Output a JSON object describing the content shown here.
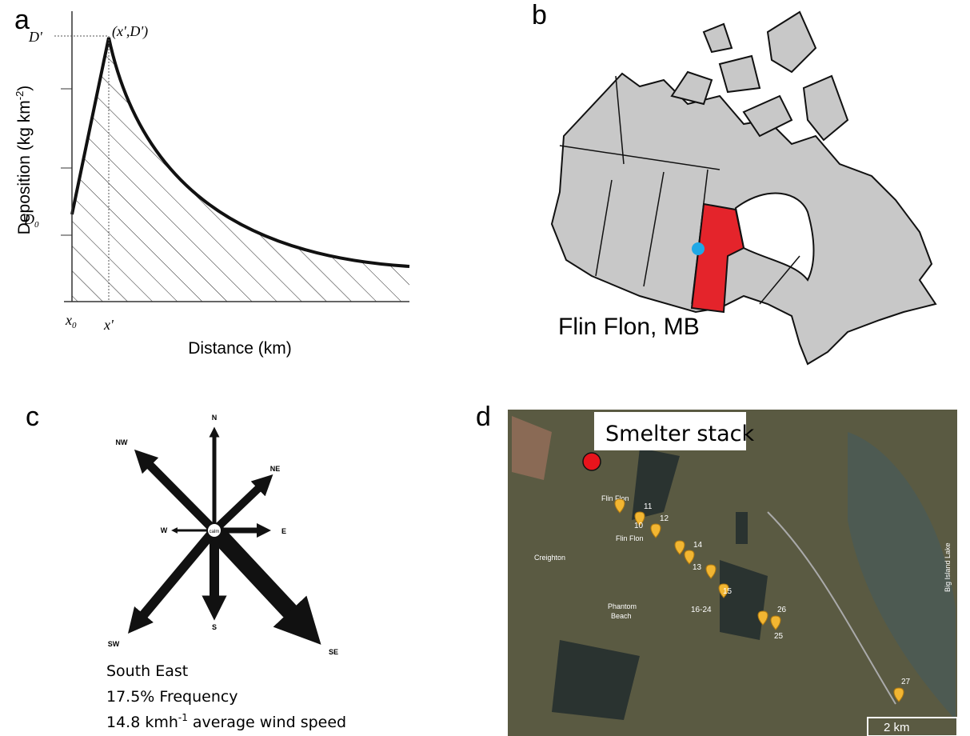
{
  "panel_a": {
    "label": "a",
    "y_label": "Deposition (kg km",
    "y_label_sup": "-2",
    "y_label_end": ")",
    "x_label": "Distance (km)",
    "d_prime": "D'",
    "peak": "(x',D')",
    "d0": "D",
    "d0_sub": "0",
    "x0": "x",
    "x0_sub": "0",
    "x_prime": "x'"
  },
  "panel_b": {
    "label": "b",
    "place": "Flin Flon, MB"
  },
  "panel_c": {
    "label": "c",
    "directions": {
      "n": "N",
      "ne": "NE",
      "e": "E",
      "se": "SE",
      "s": "S",
      "sw": "SW",
      "w": "W",
      "nw": "NW"
    },
    "calm": "calm",
    "caption": [
      "South East",
      "17.5% Frequency"
    ],
    "speed": "14.8 kmh",
    "speed_sup": "-1",
    "speed_end": " average wind speed"
  },
  "panel_d": {
    "label": "d",
    "stack": "Smelter stack",
    "places": [
      "Flin Flon",
      "Flin Flon",
      "Creighton",
      "Phantom",
      "Beach",
      "Big Island Lake"
    ],
    "sites": [
      "11",
      "12",
      "10",
      "14",
      "13",
      "15",
      "16-24",
      "26",
      "25",
      "27"
    ],
    "scale": "2 km"
  }
}
